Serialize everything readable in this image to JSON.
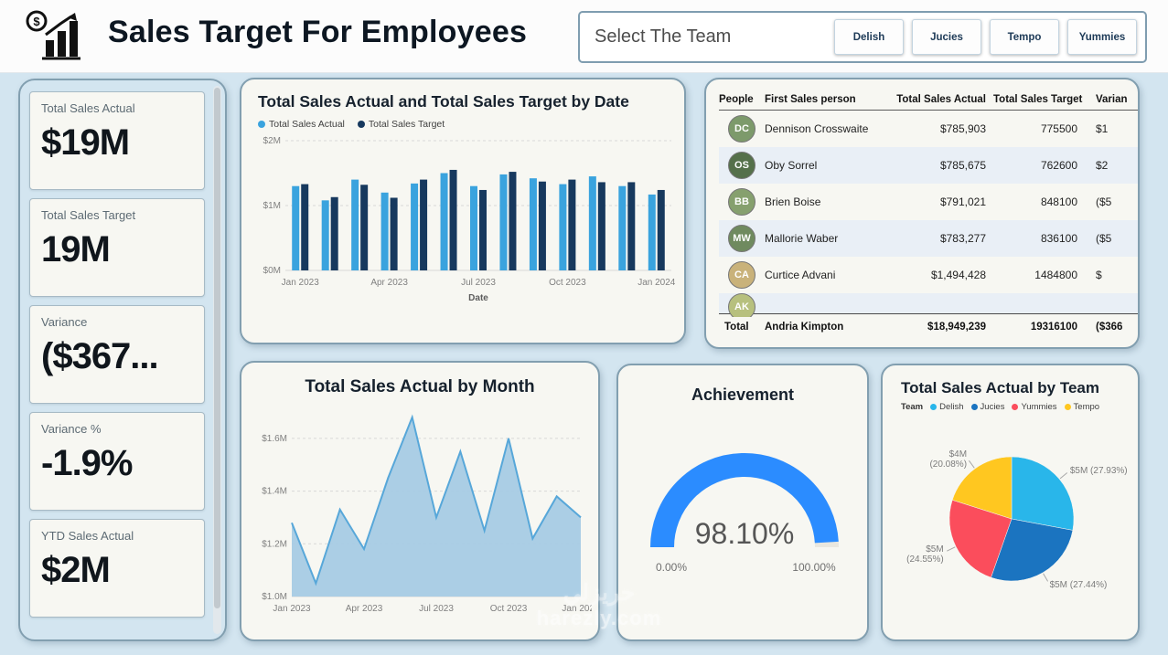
{
  "header": {
    "title": "Sales Target For Employees",
    "logo": "bar-chart-with-dollar-icon",
    "slicer": {
      "label": "Select The Team",
      "buttons": [
        "Delish",
        "Jucies",
        "Tempo",
        "Yummies"
      ]
    }
  },
  "kpis": [
    {
      "label": "Total Sales Actual",
      "value": "$19M"
    },
    {
      "label": "Total Sales Target",
      "value": "19M"
    },
    {
      "label": "Variance",
      "value": "($367..."
    },
    {
      "label": "Variance %",
      "value": "-1.9%"
    },
    {
      "label": "YTD Sales Actual",
      "value": "$2M"
    }
  ],
  "table": {
    "columns": [
      "People",
      "First Sales person",
      "Total Sales Actual",
      "Total Sales Target",
      "Varian"
    ],
    "rows": [
      {
        "name": "Dennison Crosswaite",
        "initials": "DC",
        "actual": "$785,903",
        "target": "775500",
        "variance": "$1"
      },
      {
        "name": "Oby Sorrel",
        "initials": "OS",
        "actual": "$785,675",
        "target": "762600",
        "variance": "$2"
      },
      {
        "name": "Brien Boise",
        "initials": "BB",
        "actual": "$791,021",
        "target": "848100",
        "variance": "($5"
      },
      {
        "name": "Mallorie Waber",
        "initials": "MW",
        "actual": "$783,277",
        "target": "836100",
        "variance": "($5"
      },
      {
        "name": "Curtice Advani",
        "initials": "CA",
        "actual": "$1,494,428",
        "target": "1484800",
        "variance": "$"
      }
    ],
    "partial_row": {
      "name": "Andria Kimpton",
      "initials": "AK"
    },
    "total": {
      "label": "Total",
      "name": "Andria Kimpton",
      "actual": "$18,949,239",
      "target": "19316100",
      "variance": "($366"
    }
  },
  "colors": {
    "page_bg": "#d3e5f0",
    "card_bg": "#f7f7f2",
    "card_border": "#829fb0",
    "actual_blue": "#3aa3de",
    "target_navy": "#17395e",
    "gauge_blue": "#2b8cff",
    "delish": "#29b6ea",
    "jucies": "#1b74c0",
    "yummies": "#fb4d5c",
    "tempo": "#ffc720"
  },
  "chart_data": [
    {
      "id": "bar",
      "type": "bar",
      "title": "Total Sales Actual and Total Sales Target by Date",
      "categories": [
        "Jan 2023",
        "Feb 2023",
        "Mar 2023",
        "Apr 2023",
        "May 2023",
        "Jun 2023",
        "Jul 2023",
        "Aug 2023",
        "Sep 2023",
        "Oct 2023",
        "Nov 2023",
        "Dec 2023",
        "Jan 2024"
      ],
      "series": [
        {
          "name": "Total Sales Actual",
          "color": "#3aa3de",
          "values": [
            1.3,
            1.08,
            1.4,
            1.2,
            1.34,
            1.5,
            1.3,
            1.48,
            1.42,
            1.33,
            1.45,
            1.3,
            1.17
          ]
        },
        {
          "name": "Total Sales Target",
          "color": "#17395e",
          "values": [
            1.33,
            1.13,
            1.32,
            1.12,
            1.4,
            1.55,
            1.24,
            1.52,
            1.37,
            1.4,
            1.36,
            1.36,
            1.24
          ]
        }
      ],
      "unit": "$M",
      "ylim": [
        0,
        2
      ],
      "yticks": [
        {
          "value": 0,
          "label": "$0M"
        },
        {
          "value": 1,
          "label": "$1M"
        },
        {
          "value": 2,
          "label": "$2M"
        }
      ],
      "xlabel": "Date",
      "xticks": [
        {
          "index": 0,
          "label": "Jan 2023"
        },
        {
          "index": 3,
          "label": "Apr 2023"
        },
        {
          "index": 6,
          "label": "Jul 2023"
        },
        {
          "index": 9,
          "label": "Oct 2023"
        },
        {
          "index": 12,
          "label": "Jan 2024"
        }
      ],
      "legend_position": "top-left",
      "grid": true
    },
    {
      "id": "area",
      "type": "area",
      "title": "Total Sales Actual by Month",
      "categories": [
        "Jan 2023",
        "Feb 2023",
        "Mar 2023",
        "Apr 2023",
        "May 2023",
        "Jun 2023",
        "Jul 2023",
        "Aug 2023",
        "Sep 2023",
        "Oct 2023",
        "Nov 2023",
        "Dec 2023",
        "Jan 2024"
      ],
      "values": [
        1.28,
        1.05,
        1.33,
        1.18,
        1.45,
        1.68,
        1.3,
        1.55,
        1.25,
        1.6,
        1.22,
        1.38,
        1.3
      ],
      "unit": "$M",
      "ylim": [
        1.0,
        1.7
      ],
      "yticks": [
        {
          "value": 1.0,
          "label": "$1.0M"
        },
        {
          "value": 1.2,
          "label": "$1.2M"
        },
        {
          "value": 1.4,
          "label": "$1.4M"
        },
        {
          "value": 1.6,
          "label": "$1.6M"
        }
      ],
      "xticks": [
        {
          "index": 0,
          "label": "Jan 2023"
        },
        {
          "index": 3,
          "label": "Apr 2023"
        },
        {
          "index": 6,
          "label": "Jul 2023"
        },
        {
          "index": 9,
          "label": "Oct 2023"
        },
        {
          "index": 12,
          "label": "Jan 2024"
        }
      ],
      "line_color": "#57a7d9",
      "fill_color": "#a6cbe4",
      "grid": true
    },
    {
      "id": "gauge",
      "type": "gauge",
      "title": "Achievement",
      "value": 98.1,
      "display_value": "98.10%",
      "min": 0,
      "max": 100,
      "min_label": "0.00%",
      "max_label": "100.00%",
      "color": "#2b8cff",
      "track_color": "#e9e7df"
    },
    {
      "id": "pie",
      "type": "pie",
      "title": "Total Sales Actual by Team",
      "legend_title": "Team",
      "legend": [
        "Delish",
        "Jucies",
        "Yummies",
        "Tempo"
      ],
      "slices": [
        {
          "name": "Delish",
          "label": "$5M (27.93%)",
          "percent": 27.93,
          "color": "#29b6ea"
        },
        {
          "name": "Jucies",
          "label": "$5M (27.44%)",
          "percent": 27.44,
          "color": "#1b74c0"
        },
        {
          "name": "Yummies",
          "label": "$5M (24.55%)",
          "percent": 24.55,
          "color": "#fb4d5c"
        },
        {
          "name": "Tempo",
          "label": "$4M (20.08%)",
          "percent": 20.08,
          "color": "#ffc720"
        }
      ]
    }
  ],
  "watermark": {
    "line1": "حريزلي",
    "line2": "harezly.com"
  }
}
